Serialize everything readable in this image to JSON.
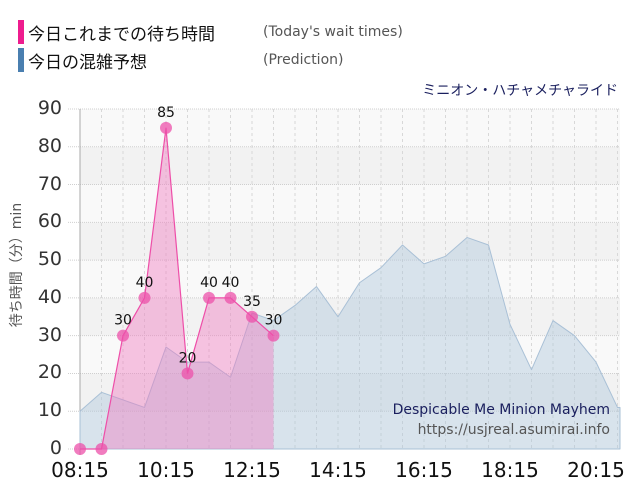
{
  "legend": [
    {
      "label_jp": "今日これまでの待ち時間",
      "label_en": "(Today's wait times)",
      "color": "#ee1c8e"
    },
    {
      "label_jp": "今日の混雑予想",
      "label_en": "(Prediction)",
      "color": "#4a7fb0"
    }
  ],
  "ride_name": "ミニオン・ハチャメチャライド",
  "credit": {
    "name": "Despicable Me Minion Mayhem",
    "url": "https://usjreal.asumirai.info"
  },
  "chart_data": {
    "type": "area",
    "title": "ミニオン・ハチャメチャライド",
    "xlabel": "",
    "ylabel": "待ち時間（分）min",
    "ylim": [
      0,
      90
    ],
    "y_ticks": [
      0,
      10,
      20,
      30,
      40,
      50,
      60,
      70,
      80,
      90
    ],
    "x_ticks": [
      "08:15",
      "10:15",
      "12:15",
      "14:15",
      "16:15",
      "18:15",
      "20:15"
    ],
    "grid": true,
    "legend_position": "top-left",
    "series": [
      {
        "name": "今日これまでの待ち時間 (Today's wait times)",
        "color": "#ee1c8e",
        "x": [
          "08:15",
          "08:45",
          "09:15",
          "09:45",
          "10:15",
          "10:45",
          "11:15",
          "11:45",
          "12:15",
          "12:45"
        ],
        "values": [
          0,
          0,
          30,
          40,
          85,
          20,
          40,
          40,
          35,
          30
        ],
        "labels": [
          "",
          "",
          "30",
          "40",
          "85",
          "20",
          "40",
          "40",
          "35",
          "30"
        ]
      },
      {
        "name": "今日の混雑予想 (Prediction)",
        "color": "#a9c0d6",
        "x": [
          "08:15",
          "08:45",
          "09:15",
          "09:45",
          "10:15",
          "10:45",
          "11:15",
          "11:45",
          "12:15",
          "12:45",
          "13:15",
          "13:45",
          "14:15",
          "14:45",
          "15:15",
          "15:45",
          "16:15",
          "16:45",
          "17:15",
          "17:45",
          "18:15",
          "18:45",
          "19:15",
          "19:45",
          "20:15",
          "20:45",
          "21:15"
        ],
        "values": [
          10,
          15,
          13,
          11,
          27,
          23,
          23,
          19,
          36,
          34,
          38,
          43,
          35,
          44,
          48,
          54,
          49,
          51,
          56,
          54,
          33,
          21,
          34,
          30,
          23,
          11,
          11
        ]
      }
    ]
  }
}
